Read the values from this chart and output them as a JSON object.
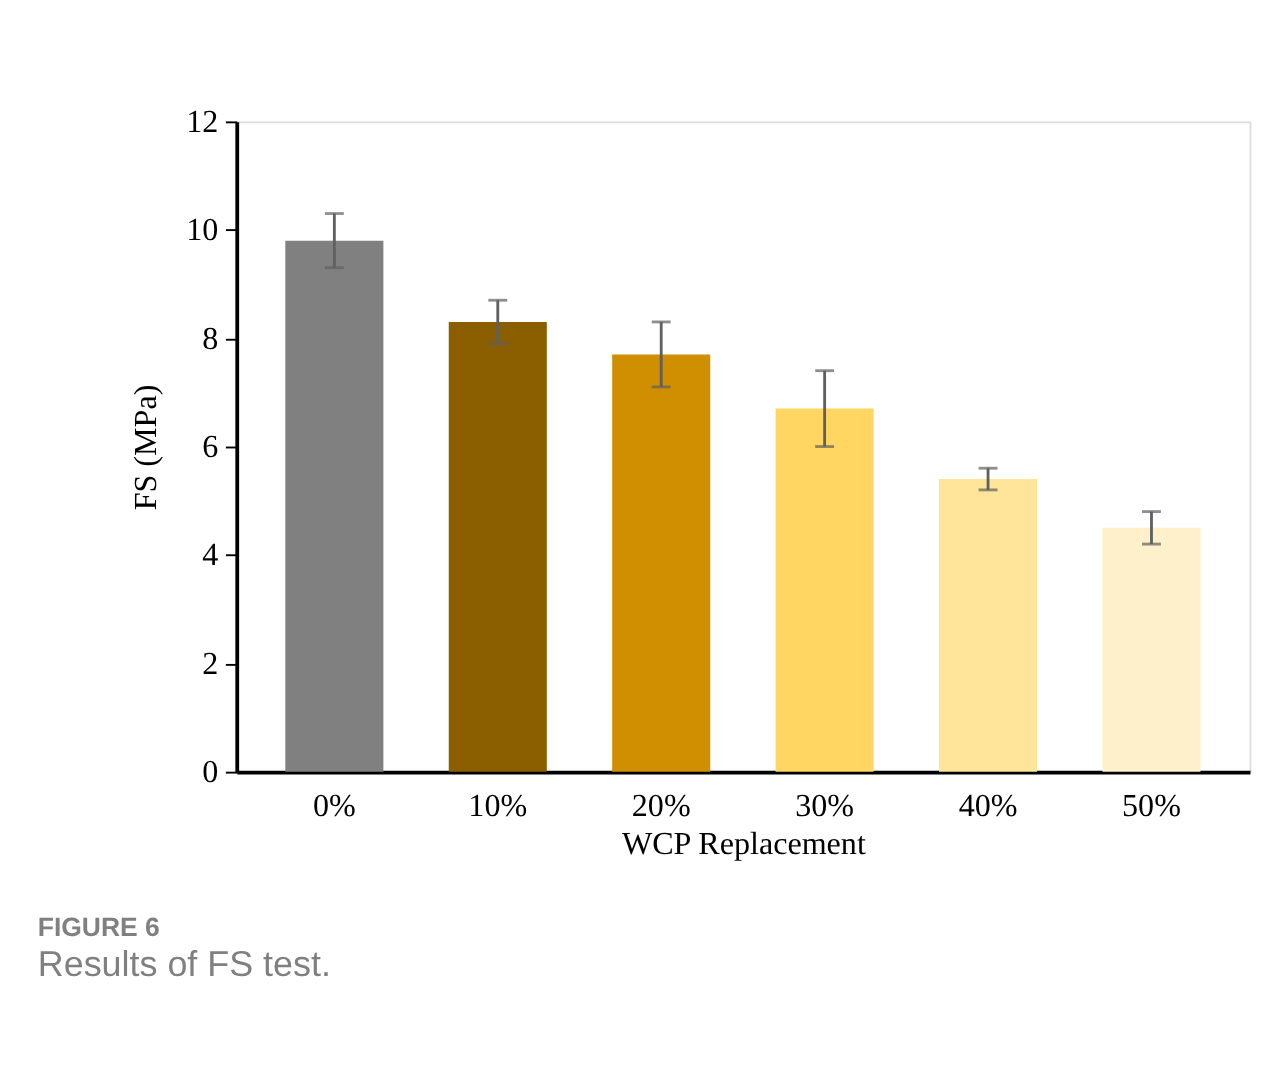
{
  "chart_data": {
    "type": "bar",
    "title": "FIGURE 6",
    "subtitle": "Results of FS test.",
    "xlabel": "WCP Replacement",
    "ylabel": "FS (MPa)",
    "categories": [
      "0%",
      "10%",
      "20%",
      "30%",
      "40%",
      "50%"
    ],
    "values": [
      9.8,
      8.3,
      7.7,
      6.7,
      5.4,
      4.5
    ],
    "errors": [
      0.5,
      0.4,
      0.6,
      0.7,
      0.2,
      0.3
    ],
    "colors": [
      "#808080",
      "#8b5e00",
      "#cf8f00",
      "#fed661",
      "#fee599",
      "#fff0cc"
    ],
    "ylim": [
      0,
      12
    ],
    "yticks": [
      0,
      2,
      4,
      6,
      8,
      10,
      12
    ],
    "grid": false,
    "legend": false
  }
}
